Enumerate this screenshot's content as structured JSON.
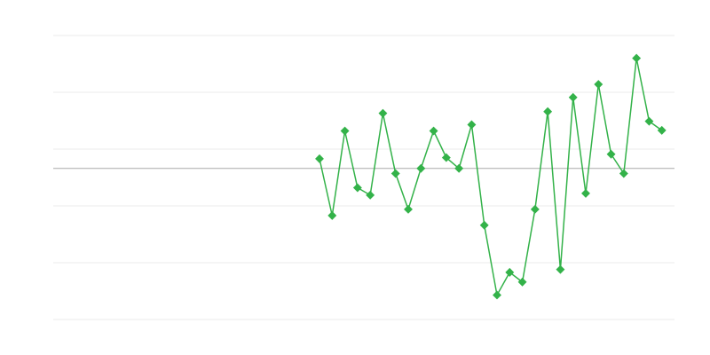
{
  "chart_data": {
    "type": "line",
    "title": "",
    "xlabel": "",
    "ylabel": "",
    "x": [
      1,
      2,
      3,
      4,
      5,
      6,
      7,
      8,
      9,
      10,
      11,
      12,
      13,
      14,
      15,
      16,
      17,
      18,
      19,
      20,
      21,
      22,
      23,
      24,
      25,
      26,
      27,
      28
    ],
    "series": [
      {
        "values": [
          1.7,
          -8.3,
          6.6,
          -3.4,
          -4.7,
          9.7,
          -0.9,
          -7.2,
          0,
          6.6,
          1.9,
          0,
          7.7,
          -10,
          -22.3,
          -18.3,
          -20,
          -7.2,
          10,
          -17.8,
          12.5,
          -4.4,
          14.8,
          2.5,
          -0.9,
          19.4,
          8.3,
          6.7
        ]
      }
    ],
    "xlim": [
      -20,
      29
    ],
    "ylim": [
      -26.6,
      23.4
    ],
    "gridlines": [
      23.4,
      13.4,
      3.4,
      -6.6,
      -16.6,
      -26.6
    ],
    "baseline": 0,
    "grid": true,
    "legend": "none",
    "colors": {
      "series": "#33b249",
      "grid": "#ebebeb",
      "baseline": "#aaaaaa"
    }
  }
}
